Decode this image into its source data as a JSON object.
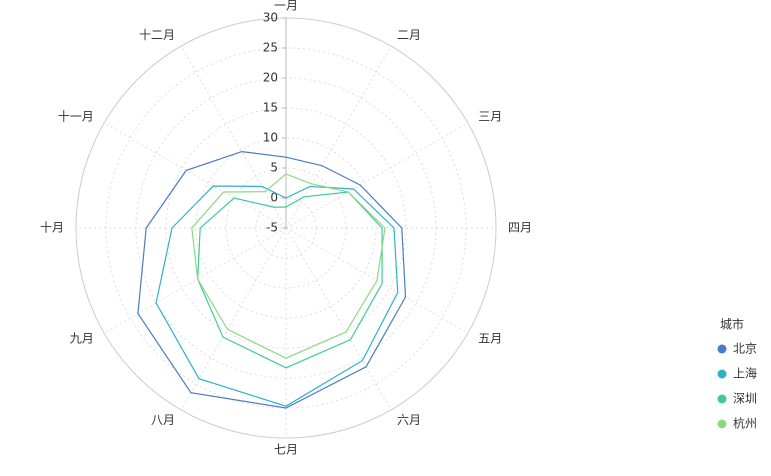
{
  "chart_data": {
    "type": "radar",
    "categories": [
      "一月",
      "二月",
      "三月",
      "四月",
      "五月",
      "六月",
      "七月",
      "八月",
      "九月",
      "十月",
      "十一月",
      "十二月"
    ],
    "rlim": [
      -5,
      30
    ],
    "rticks": [
      -5,
      0,
      5,
      10,
      15,
      20,
      25,
      30
    ],
    "grid": true,
    "legend_title": "城市",
    "legend_position": "bottom-right",
    "series": [
      {
        "name": "北京",
        "color": "#4a7bc8",
        "values": [
          6.8,
          7,
          9.3,
          14.3,
          18,
          21.7,
          25,
          26.7,
          23.5,
          18.3,
          14.2,
          9.7
        ]
      },
      {
        "name": "上海",
        "color": "#2eb1c6",
        "values": [
          0,
          3,
          8,
          13,
          16.5,
          20.5,
          24.7,
          24,
          20,
          14,
          9,
          3
        ]
      },
      {
        "name": "深圳",
        "color": "#40c9a0",
        "values": [
          -1.5,
          1,
          7,
          11,
          13.5,
          16.5,
          18.3,
          16,
          12,
          9.3,
          5,
          -1
        ]
      },
      {
        "name": "杭州",
        "color": "#8ed97f",
        "values": [
          4,
          3.5,
          7,
          11.5,
          12.5,
          15,
          16.7,
          14.5,
          12,
          10.7,
          7,
          2
        ]
      }
    ]
  }
}
